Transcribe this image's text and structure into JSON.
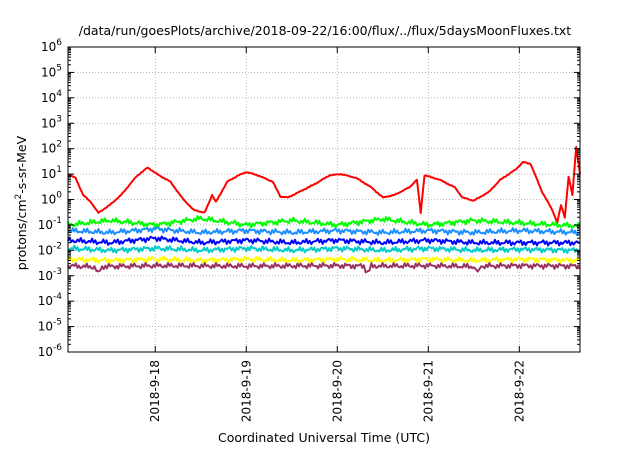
{
  "chart_data": {
    "type": "line",
    "title": "/data/run/goesPlots/archive/2018-09-22/16:00/flux/../flux/5daysMoonFluxes.txt",
    "xlabel": "Coordinated Universal Time (UTC)",
    "ylabel": {
      "prefix": "protons/cm",
      "sup": "2",
      "suffix": "-s-sr-MeV"
    },
    "yscale": "log",
    "ylim": [
      1e-06,
      1000000.0
    ],
    "xlim": [
      "2018-09-17 01:00",
      "2018-09-22 16:00"
    ],
    "grid": true,
    "x_ticks": [
      "2018-9-18",
      "2018-9-19",
      "2018-9-20",
      "2018-9-21",
      "2018-9-22"
    ],
    "y_ticks": [
      {
        "base": "10",
        "exp": "6"
      },
      {
        "base": "10",
        "exp": "5"
      },
      {
        "base": "10",
        "exp": "4"
      },
      {
        "base": "10",
        "exp": "3"
      },
      {
        "base": "10",
        "exp": "2"
      },
      {
        "base": "10",
        "exp": "1"
      },
      {
        "base": "10",
        "exp": "0"
      },
      {
        "base": "10",
        "exp": "-1"
      },
      {
        "base": "10",
        "exp": "-2"
      },
      {
        "base": "10",
        "exp": "-3"
      },
      {
        "base": "10",
        "exp": "-4"
      },
      {
        "base": "10",
        "exp": "-5"
      },
      {
        "base": "10",
        "exp": "-6"
      }
    ],
    "series": [
      {
        "color": "#ff0000",
        "points": [
          [
            "2018-09-17 01:00",
            10
          ],
          [
            "2018-09-17 03:00",
            7
          ],
          [
            "2018-09-17 05:00",
            1.5
          ],
          [
            "2018-09-17 07:00",
            0.8
          ],
          [
            "2018-09-17 09:00",
            0.3
          ],
          [
            "2018-09-17 12:00",
            0.6
          ],
          [
            "2018-09-17 15:00",
            1.5
          ],
          [
            "2018-09-17 19:00",
            8
          ],
          [
            "2018-09-17 22:00",
            18
          ],
          [
            "2018-09-18 01:00",
            9
          ],
          [
            "2018-09-18 04:00",
            5
          ],
          [
            "2018-09-18 07:00",
            1.2
          ],
          [
            "2018-09-18 10:00",
            0.4
          ],
          [
            "2018-09-18 13:00",
            0.3
          ],
          [
            "2018-09-18 15:00",
            1.5
          ],
          [
            "2018-09-18 16:00",
            0.8
          ],
          [
            "2018-09-18 19:00",
            5
          ],
          [
            "2018-09-18 22:00",
            9
          ],
          [
            "2018-09-19 00:00",
            12
          ],
          [
            "2018-09-19 03:00",
            9
          ],
          [
            "2018-09-19 07:00",
            5
          ],
          [
            "2018-09-19 09:00",
            1.3
          ],
          [
            "2018-09-19 11:00",
            1.2
          ],
          [
            "2018-09-19 14:00",
            2
          ],
          [
            "2018-09-19 18:00",
            4
          ],
          [
            "2018-09-19 22:00",
            9
          ],
          [
            "2018-09-20 01:00",
            10
          ],
          [
            "2018-09-20 05:00",
            7
          ],
          [
            "2018-09-20 09:00",
            3
          ],
          [
            "2018-09-20 12:00",
            1.2
          ],
          [
            "2018-09-20 15:00",
            1.5
          ],
          [
            "2018-09-20 19:00",
            3
          ],
          [
            "2018-09-20 21:00",
            6
          ],
          [
            "2018-09-20 22:00",
            0.3
          ],
          [
            "2018-09-20 23:00",
            9
          ],
          [
            "2018-09-21 03:00",
            6
          ],
          [
            "2018-09-21 07:00",
            3
          ],
          [
            "2018-09-21 09:00",
            1.2
          ],
          [
            "2018-09-21 12:00",
            0.9
          ],
          [
            "2018-09-21 16:00",
            2
          ],
          [
            "2018-09-21 19:00",
            6
          ],
          [
            "2018-09-21 23:00",
            15
          ],
          [
            "2018-09-22 01:00",
            30
          ],
          [
            "2018-09-22 03:00",
            25
          ],
          [
            "2018-09-22 06:00",
            2
          ],
          [
            "2018-09-22 08:00",
            0.6
          ],
          [
            "2018-09-22 09:00",
            0.3
          ],
          [
            "2018-09-22 10:00",
            0.12
          ],
          [
            "2018-09-22 11:00",
            0.6
          ],
          [
            "2018-09-22 12:00",
            0.2
          ],
          [
            "2018-09-22 13:00",
            8
          ],
          [
            "2018-09-22 14:00",
            1.5
          ],
          [
            "2018-09-22 15:00",
            120
          ],
          [
            "2018-09-22 16:00",
            10
          ]
        ]
      },
      {
        "color": "#00ff00",
        "points": [
          [
            "2018-09-17 01:00",
            0.1
          ],
          [
            "2018-09-17 12:00",
            0.15
          ],
          [
            "2018-09-18 00:00",
            0.1
          ],
          [
            "2018-09-18 12:00",
            0.18
          ],
          [
            "2018-09-19 00:00",
            0.1
          ],
          [
            "2018-09-19 12:00",
            0.15
          ],
          [
            "2018-09-20 00:00",
            0.1
          ],
          [
            "2018-09-20 12:00",
            0.17
          ],
          [
            "2018-09-21 00:00",
            0.1
          ],
          [
            "2018-09-21 12:00",
            0.15
          ],
          [
            "2018-09-22 00:00",
            0.12
          ],
          [
            "2018-09-22 16:00",
            0.09
          ]
        ]
      },
      {
        "color": "#1e90ff",
        "points": [
          [
            "2018-09-17 01:00",
            0.06
          ],
          [
            "2018-09-17 12:00",
            0.05
          ],
          [
            "2018-09-18 00:00",
            0.07
          ],
          [
            "2018-09-18 12:00",
            0.05
          ],
          [
            "2018-09-19 00:00",
            0.06
          ],
          [
            "2018-09-19 12:00",
            0.05
          ],
          [
            "2018-09-20 00:00",
            0.06
          ],
          [
            "2018-09-20 12:00",
            0.05
          ],
          [
            "2018-09-21 00:00",
            0.06
          ],
          [
            "2018-09-21 12:00",
            0.05
          ],
          [
            "2018-09-22 00:00",
            0.06
          ],
          [
            "2018-09-22 16:00",
            0.05
          ]
        ]
      },
      {
        "color": "#0000ff",
        "points": [
          [
            "2018-09-17 01:00",
            0.025
          ],
          [
            "2018-09-17 12:00",
            0.02
          ],
          [
            "2018-09-18 00:00",
            0.03
          ],
          [
            "2018-09-18 12:00",
            0.02
          ],
          [
            "2018-09-19 00:00",
            0.025
          ],
          [
            "2018-09-19 12:00",
            0.02
          ],
          [
            "2018-09-20 00:00",
            0.025
          ],
          [
            "2018-09-20 12:00",
            0.02
          ],
          [
            "2018-09-21 00:00",
            0.025
          ],
          [
            "2018-09-21 12:00",
            0.02
          ],
          [
            "2018-09-22 00:00",
            0.02
          ],
          [
            "2018-09-22 16:00",
            0.02
          ]
        ]
      },
      {
        "color": "#00cccc",
        "points": [
          [
            "2018-09-17 01:00",
            0.012
          ],
          [
            "2018-09-17 12:00",
            0.01
          ],
          [
            "2018-09-18 00:00",
            0.012
          ],
          [
            "2018-09-18 12:00",
            0.01
          ],
          [
            "2018-09-19 00:00",
            0.012
          ],
          [
            "2018-09-19 12:00",
            0.01
          ],
          [
            "2018-09-20 00:00",
            0.012
          ],
          [
            "2018-09-20 12:00",
            0.01
          ],
          [
            "2018-09-21 00:00",
            0.012
          ],
          [
            "2018-09-21 12:00",
            0.01
          ],
          [
            "2018-09-22 00:00",
            0.011
          ],
          [
            "2018-09-22 16:00",
            0.01
          ]
        ]
      },
      {
        "color": "#ffff00",
        "points": [
          [
            "2018-09-17 01:00",
            0.0045
          ],
          [
            "2018-09-17 12:00",
            0.004
          ],
          [
            "2018-09-18 00:00",
            0.0045
          ],
          [
            "2018-09-18 12:00",
            0.004
          ],
          [
            "2018-09-19 00:00",
            0.0045
          ],
          [
            "2018-09-19 12:00",
            0.004
          ],
          [
            "2018-09-20 00:00",
            0.0045
          ],
          [
            "2018-09-20 12:00",
            0.004
          ],
          [
            "2018-09-21 00:00",
            0.0045
          ],
          [
            "2018-09-21 12:00",
            0.004
          ],
          [
            "2018-09-22 00:00",
            0.0045
          ],
          [
            "2018-09-22 16:00",
            0.004
          ]
        ]
      },
      {
        "color": "#993366",
        "points": [
          [
            "2018-09-17 01:00",
            0.0025
          ],
          [
            "2018-09-17 08:00",
            0.0022
          ],
          [
            "2018-09-17 09:00",
            0.0012
          ],
          [
            "2018-09-17 10:00",
            0.0023
          ],
          [
            "2018-09-18 00:00",
            0.0025
          ],
          [
            "2018-09-19 00:00",
            0.0024
          ],
          [
            "2018-09-20 00:00",
            0.0025
          ],
          [
            "2018-09-20 07:00",
            0.0024
          ],
          [
            "2018-09-20 08:00",
            0.0013
          ],
          [
            "2018-09-20 09:00",
            0.0024
          ],
          [
            "2018-09-21 00:00",
            0.0025
          ],
          [
            "2018-09-21 12:00",
            0.0023
          ],
          [
            "2018-09-21 13:00",
            0.0013
          ],
          [
            "2018-09-21 14:00",
            0.0024
          ],
          [
            "2018-09-22 00:00",
            0.0025
          ],
          [
            "2018-09-22 16:00",
            0.0024
          ]
        ]
      }
    ]
  }
}
